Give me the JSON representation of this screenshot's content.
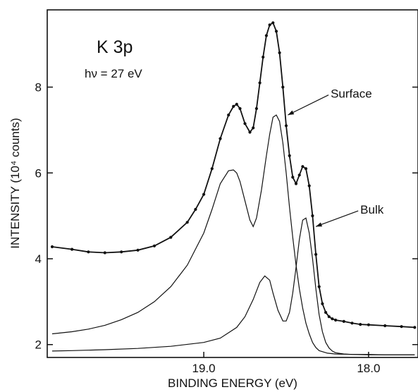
{
  "chart_data": {
    "type": "line",
    "title": "K 3p",
    "subtitle": "hν = 27 eV",
    "xlabel": "BINDING ENERGY (eV)",
    "ylabel": "INTENSITY (10⁴ counts)",
    "xlim": [
      19.95,
      17.7
    ],
    "ylim": [
      1.7,
      9.8
    ],
    "x_reversed": true,
    "grid": false,
    "xticks": [
      19.0,
      18.0
    ],
    "xtick_labels": [
      "19.0",
      "18.0"
    ],
    "yticks": [
      2,
      4,
      6,
      8
    ],
    "ytick_labels": [
      "2",
      "4",
      "6",
      "8"
    ],
    "series": [
      {
        "kind": "data-points",
        "x": [
          19.92,
          19.8,
          19.7,
          19.6,
          19.5,
          19.4,
          19.3,
          19.2,
          19.1,
          19.05,
          19.0,
          18.95,
          18.9,
          18.85,
          18.82,
          18.8,
          18.78,
          18.75,
          18.72,
          18.7,
          18.68,
          18.66,
          18.64,
          18.62,
          18.6,
          18.58,
          18.56,
          18.54,
          18.52,
          18.5,
          18.48,
          18.46,
          18.44,
          18.42,
          18.4,
          18.38,
          18.36,
          18.34,
          18.32,
          18.3,
          18.28,
          18.26,
          18.24,
          18.22,
          18.2,
          18.15,
          18.1,
          18.05,
          18.0,
          17.9,
          17.8,
          17.72
        ],
        "y": [
          4.28,
          4.22,
          4.16,
          4.14,
          4.16,
          4.2,
          4.3,
          4.5,
          4.85,
          5.15,
          5.5,
          6.1,
          6.8,
          7.35,
          7.55,
          7.6,
          7.5,
          7.15,
          6.95,
          7.05,
          7.5,
          8.1,
          8.7,
          9.2,
          9.45,
          9.5,
          9.3,
          8.8,
          8.0,
          7.1,
          6.4,
          5.9,
          5.75,
          5.95,
          6.15,
          6.1,
          5.7,
          5.0,
          4.1,
          3.35,
          2.95,
          2.75,
          2.65,
          2.6,
          2.57,
          2.54,
          2.5,
          2.47,
          2.46,
          2.44,
          2.42,
          2.4
        ]
      },
      {
        "name": "Surface",
        "kind": "fit",
        "x": [
          19.92,
          19.8,
          19.7,
          19.6,
          19.5,
          19.4,
          19.3,
          19.2,
          19.1,
          19.0,
          18.95,
          18.9,
          18.85,
          18.82,
          18.8,
          18.78,
          18.75,
          18.72,
          18.7,
          18.68,
          18.65,
          18.62,
          18.6,
          18.58,
          18.56,
          18.54,
          18.52,
          18.5,
          18.48,
          18.46,
          18.44,
          18.42,
          18.4,
          18.38,
          18.36,
          18.34,
          18.32,
          18.3,
          18.25,
          18.2,
          18.1,
          18.0,
          17.9,
          17.8,
          17.72
        ],
        "y": [
          2.25,
          2.3,
          2.36,
          2.45,
          2.58,
          2.75,
          3.0,
          3.35,
          3.85,
          4.6,
          5.15,
          5.75,
          6.05,
          6.07,
          6.0,
          5.8,
          5.35,
          4.9,
          4.75,
          4.95,
          5.6,
          6.4,
          6.9,
          7.3,
          7.35,
          7.2,
          6.7,
          6.0,
          5.2,
          4.5,
          3.85,
          3.3,
          2.85,
          2.5,
          2.25,
          2.05,
          1.93,
          1.86,
          1.8,
          1.78,
          1.77,
          1.77,
          1.76,
          1.76,
          1.76
        ]
      },
      {
        "name": "Bulk",
        "kind": "fit",
        "x": [
          19.92,
          19.8,
          19.6,
          19.4,
          19.2,
          19.0,
          18.9,
          18.8,
          18.75,
          18.7,
          18.66,
          18.63,
          18.6,
          18.58,
          18.55,
          18.52,
          18.5,
          18.48,
          18.46,
          18.44,
          18.42,
          18.4,
          18.38,
          18.36,
          18.34,
          18.32,
          18.3,
          18.28,
          18.26,
          18.24,
          18.22,
          18.2,
          18.15,
          18.1,
          18.0,
          17.9,
          17.8,
          17.72
        ],
        "y": [
          1.85,
          1.86,
          1.88,
          1.91,
          1.96,
          2.05,
          2.15,
          2.4,
          2.65,
          3.05,
          3.45,
          3.6,
          3.5,
          3.2,
          2.8,
          2.55,
          2.55,
          2.75,
          3.2,
          3.8,
          4.45,
          4.9,
          4.95,
          4.6,
          4.0,
          3.3,
          2.7,
          2.3,
          2.05,
          1.92,
          1.85,
          1.81,
          1.78,
          1.77,
          1.76,
          1.76,
          1.76,
          1.76
        ]
      }
    ],
    "annotations": [
      {
        "text": "Surface",
        "label_x": 18.23,
        "label_y": 7.85,
        "arrow_x": 18.49,
        "arrow_y": 7.35
      },
      {
        "text": "Bulk",
        "label_x": 18.05,
        "label_y": 5.15,
        "arrow_x": 18.32,
        "arrow_y": 4.75
      }
    ]
  }
}
